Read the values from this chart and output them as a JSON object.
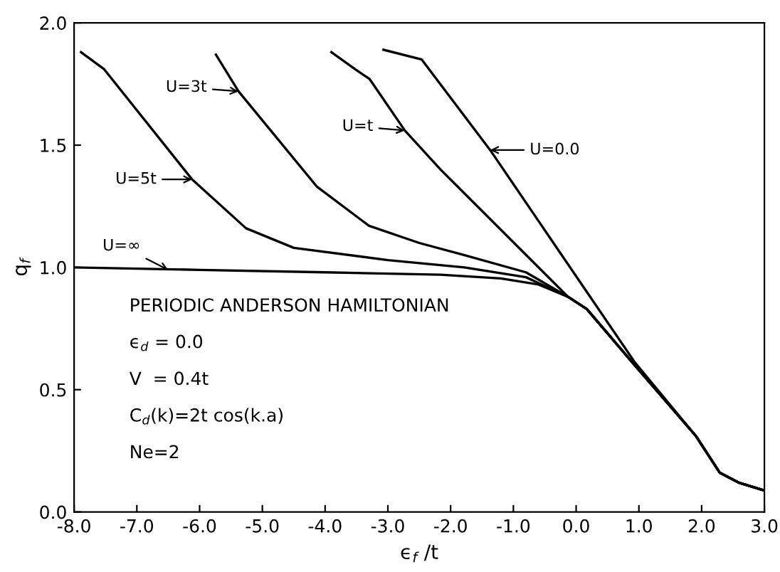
{
  "chart_data": {
    "type": "line",
    "xlabel": "ϵ$_{f}$ /t",
    "ylabel": "q$_{f}$",
    "xlim": [
      -8.0,
      3.0
    ],
    "ylim": [
      0.0,
      2.0
    ],
    "xticks": [
      {
        "value": -8,
        "label": "-8.0"
      },
      {
        "value": -7,
        "label": "-7.0"
      },
      {
        "value": -6,
        "label": "-6.0"
      },
      {
        "value": -5,
        "label": "-5.0"
      },
      {
        "value": -4,
        "label": "-4.0"
      },
      {
        "value": -3,
        "label": "-3.0"
      },
      {
        "value": -2,
        "label": "-2.0"
      },
      {
        "value": -1,
        "label": "-1.0"
      },
      {
        "value": 0,
        "label": "0.0"
      },
      {
        "value": 1,
        "label": "1.0"
      },
      {
        "value": 2,
        "label": "2.0"
      },
      {
        "value": 3,
        "label": "3.0"
      }
    ],
    "yticks": [
      {
        "value": 0,
        "label": "0.0"
      },
      0.5,
      {
        "value": 1,
        "label": "1.0"
      },
      1.5,
      {
        "value": 2,
        "label": "2.0"
      }
    ],
    "grid": false,
    "marker": "none",
    "line_style": "solid",
    "series": [
      {
        "color": "#000000",
        "x": [
          -3.07,
          -2.46,
          -1.37,
          0.94,
          1.91,
          2.29,
          2.59,
          2.97
        ],
        "values": [
          1.89,
          1.85,
          1.48,
          0.61,
          0.31,
          0.16,
          0.12,
          0.09
        ]
      },
      {
        "color": "#000000",
        "x": [
          -3.9,
          -3.52,
          -3.29,
          -2.73,
          -2.16,
          -0.13,
          0.17,
          0.9,
          1.91,
          2.29,
          2.59,
          2.97
        ],
        "values": [
          1.88,
          1.81,
          1.77,
          1.56,
          1.4,
          0.88,
          0.83,
          0.61,
          0.31,
          0.16,
          0.12,
          0.09
        ]
      },
      {
        "color": "#000000",
        "x": [
          -5.74,
          -5.38,
          -4.13,
          -3.3,
          -2.5,
          -1.78,
          -0.8,
          -0.13,
          0.17,
          0.9,
          1.91,
          2.29,
          2.59,
          2.97
        ],
        "values": [
          1.87,
          1.72,
          1.33,
          1.17,
          1.1,
          1.05,
          0.98,
          0.88,
          0.83,
          0.61,
          0.31,
          0.16,
          0.12,
          0.09
        ]
      },
      {
        "color": "#000000",
        "x": [
          -7.89,
          -7.52,
          -6.12,
          -5.26,
          -4.5,
          -3.0,
          -1.78,
          -0.8,
          -0.13,
          0.17,
          0.9,
          1.91,
          2.29,
          2.59,
          2.97
        ],
        "values": [
          1.88,
          1.81,
          1.36,
          1.16,
          1.08,
          1.03,
          1.0,
          0.96,
          0.88,
          0.83,
          0.61,
          0.31,
          0.16,
          0.12,
          0.09
        ]
      },
      {
        "color": "#000000",
        "x": [
          -8.0,
          -6.0,
          -4.0,
          -2.16,
          -1.2,
          -0.6,
          -0.13,
          0.17,
          0.9,
          1.91,
          2.29,
          2.59,
          2.97
        ],
        "values": [
          1.0,
          0.99,
          0.98,
          0.97,
          0.955,
          0.93,
          0.88,
          0.83,
          0.61,
          0.31,
          0.16,
          0.12,
          0.09
        ]
      }
    ],
    "annotations": [
      {
        "text": "U=0.0",
        "x": -1.37,
        "y": 1.48
      },
      {
        "text": "U=t",
        "x": -2.73,
        "y": 1.56
      },
      {
        "text": "U=3t",
        "x": -5.38,
        "y": 1.72
      },
      {
        "text": "U=5t",
        "x": -6.12,
        "y": 1.36
      },
      {
        "text": "U=∞",
        "x": -6.5,
        "y": 0.99
      },
      "PERIODIC ANDERSON HAMILTONIAN",
      "ϵ$_{d}$ = 0.0",
      "V  = 0.4t",
      "C$_{d}$(k)=2t cos(k.a)",
      "Ne=2"
    ]
  }
}
